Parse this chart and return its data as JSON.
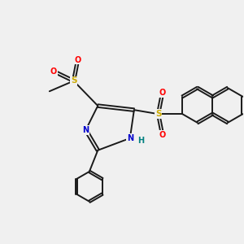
{
  "bg_color": "#f0f0f0",
  "bond_color": "#1a1a1a",
  "n_color": "#0000cc",
  "o_color": "#ff0000",
  "s_color": "#ccaa00",
  "h_color": "#008080",
  "line_width": 1.4,
  "xlim": [
    0,
    10
  ],
  "ylim": [
    0,
    10
  ]
}
